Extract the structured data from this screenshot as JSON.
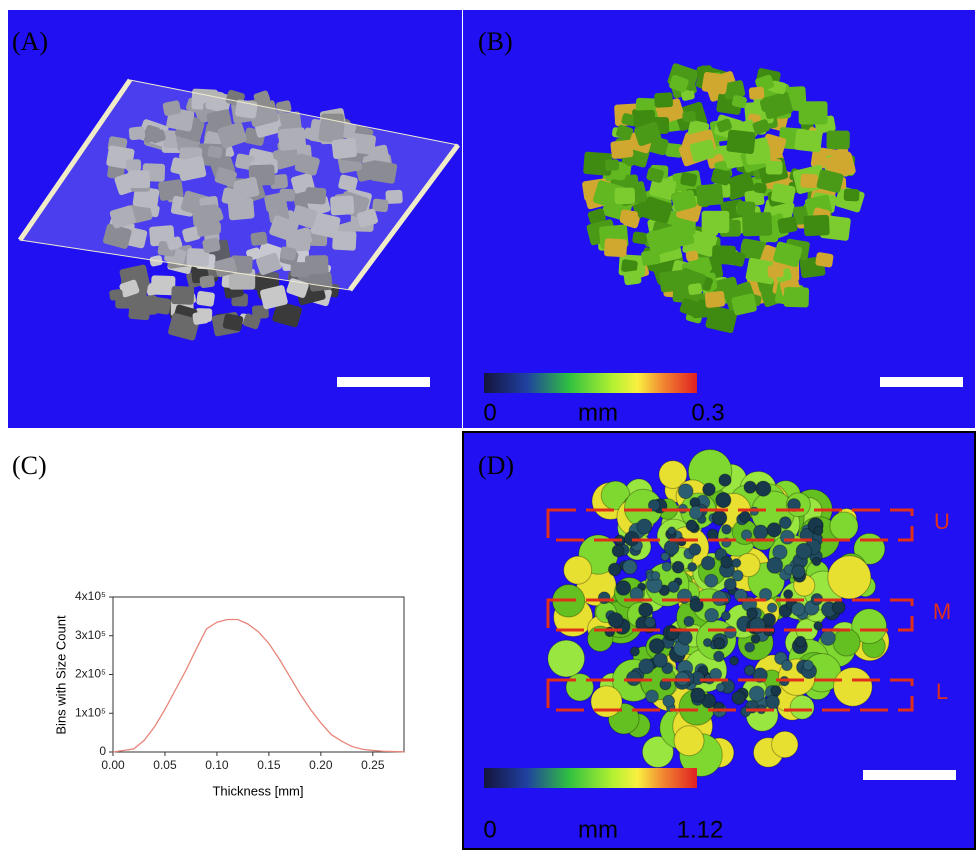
{
  "panels": {
    "a": {
      "label": "(A)"
    },
    "b": {
      "label": "(B)",
      "colorbar": {
        "min": 0,
        "unit": "mm",
        "max": 0.3
      }
    },
    "c": {
      "label": "(C)"
    },
    "d": {
      "label": "(D)",
      "colorbar": {
        "min": 0,
        "unit": "mm",
        "max": 1.12
      },
      "regions": [
        "U",
        "M",
        "L"
      ]
    }
  },
  "chart_data": {
    "type": "line",
    "x_label": "Thickness [mm]",
    "y_label": "Bins with Size Count",
    "x": [
      0,
      0.02,
      0.03,
      0.04,
      0.05,
      0.06,
      0.07,
      0.08,
      0.09,
      0.1,
      0.11,
      0.12,
      0.13,
      0.14,
      0.15,
      0.16,
      0.17,
      0.18,
      0.19,
      0.2,
      0.21,
      0.22,
      0.23,
      0.24,
      0.25,
      0.26,
      0.28
    ],
    "values": [
      0,
      8000,
      30000,
      65000,
      110000,
      160000,
      210000,
      265000,
      318000,
      335000,
      342000,
      342000,
      330000,
      310000,
      280000,
      240000,
      195000,
      150000,
      110000,
      75000,
      45000,
      28000,
      14000,
      7000,
      4000,
      2000,
      500
    ],
    "color": "#e8857a",
    "xlim": [
      0,
      0.28
    ],
    "xticks": [
      {
        "value": 0,
        "label": "0.00"
      },
      {
        "value": 0.05,
        "label": "0.05"
      },
      {
        "value": 0.1,
        "label": "0.10"
      },
      {
        "value": 0.15,
        "label": "0.15"
      },
      {
        "value": 0.2,
        "label": "0.20"
      },
      {
        "value": 0.25,
        "label": "0.25"
      }
    ],
    "ylim": [
      0,
      400000
    ],
    "yticks": [
      0,
      {
        "value": 100000,
        "label": "1x10⁵"
      },
      {
        "value": 200000,
        "label": "2x10⁵"
      },
      {
        "value": 300000,
        "label": "3x10⁵"
      },
      {
        "value": 400000,
        "label": "4x10⁵"
      }
    ]
  }
}
